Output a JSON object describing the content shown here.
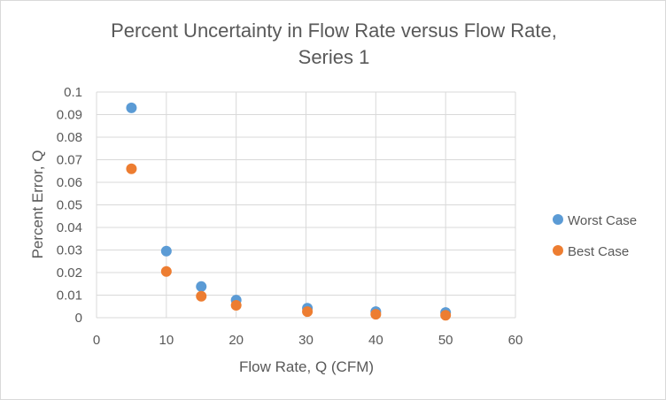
{
  "chart_data": {
    "type": "scatter",
    "title_lines": [
      "Percent Uncertainty in Flow Rate versus Flow Rate,",
      "Series 1"
    ],
    "xlabel": "Flow Rate, Q (CFM)",
    "ylabel": "Percent Error, Q",
    "xlim": [
      0,
      60
    ],
    "ylim": [
      0,
      0.1
    ],
    "x_ticks": [
      0,
      10,
      20,
      30,
      40,
      50,
      60
    ],
    "x_tick_labels": [
      "0",
      "10",
      "20",
      "30",
      "40",
      "50",
      "60"
    ],
    "y_ticks": [
      0,
      0.01,
      0.02,
      0.03,
      0.04,
      0.05,
      0.06,
      0.07,
      0.08,
      0.09,
      0.1
    ],
    "y_tick_labels": [
      "0",
      "0.01",
      "0.02",
      "0.03",
      "0.04",
      "0.05",
      "0.06",
      "0.07",
      "0.08",
      "0.09",
      "0.1"
    ],
    "grid": true,
    "legend_position": "right",
    "series": [
      {
        "name": "Worst Case",
        "color": "#5b9bd5",
        "points": [
          {
            "x": 5,
            "y": 0.093
          },
          {
            "x": 10,
            "y": 0.0295
          },
          {
            "x": 15,
            "y": 0.0138
          },
          {
            "x": 20,
            "y": 0.0078
          },
          {
            "x": 30.2,
            "y": 0.0042
          },
          {
            "x": 40,
            "y": 0.0027
          },
          {
            "x": 50,
            "y": 0.0023
          }
        ]
      },
      {
        "name": "Best Case",
        "color": "#ed7d31",
        "points": [
          {
            "x": 5,
            "y": 0.066
          },
          {
            "x": 10,
            "y": 0.0205
          },
          {
            "x": 15,
            "y": 0.0095
          },
          {
            "x": 20,
            "y": 0.0055
          },
          {
            "x": 30.2,
            "y": 0.0027
          },
          {
            "x": 40,
            "y": 0.0015
          },
          {
            "x": 50,
            "y": 0.0011
          }
        ]
      }
    ]
  }
}
